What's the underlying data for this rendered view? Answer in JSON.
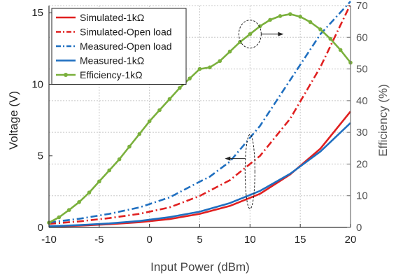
{
  "chart_data": {
    "type": "line",
    "xlabel": "Input Power (dBm)",
    "ylabel_left": "Voltage (V)",
    "ylabel_right": "Efficiency (%)",
    "xlim": [
      -10,
      20
    ],
    "ylim_left": [
      0,
      15.5
    ],
    "ylim_right": [
      0,
      70
    ],
    "x_ticks": [
      "-10",
      "-5",
      "0",
      "5",
      "10",
      "15",
      "20"
    ],
    "y_left_ticks": [
      "0",
      "5",
      "10",
      "15"
    ],
    "y_right_ticks": [
      "0",
      "10",
      "20",
      "30",
      "40",
      "50",
      "60",
      "70"
    ],
    "x_tick_values": [
      -10,
      -5,
      0,
      5,
      10,
      15,
      20
    ],
    "y_left_tick_values": [
      0,
      5,
      10,
      15
    ],
    "y_right_tick_values": [
      0,
      10,
      20,
      30,
      40,
      50,
      60,
      70
    ],
    "grid": true,
    "legend_position": "top-left",
    "colors": {
      "left_axis": "#333333",
      "right_axis": "#707070",
      "grid": "#c8c8c8"
    },
    "series": [
      {
        "name": "Simulated-1kΩ",
        "axis": "left",
        "color": "#e02020",
        "dash": "solid",
        "x": [
          -10,
          -7,
          -4,
          -1,
          2,
          5,
          8,
          11,
          14,
          17,
          20
        ],
        "y": [
          0.05,
          0.12,
          0.22,
          0.36,
          0.58,
          0.95,
          1.5,
          2.35,
          3.7,
          5.5,
          8.1
        ]
      },
      {
        "name": "Simulated-Open load",
        "axis": "left",
        "color": "#e02020",
        "dash": "dashdot",
        "x": [
          -10,
          -7,
          -4,
          -1,
          2,
          5,
          8,
          11,
          14,
          17,
          20
        ],
        "y": [
          0.25,
          0.42,
          0.65,
          0.95,
          1.4,
          2.2,
          3.3,
          5.0,
          7.6,
          11.2,
          15.6
        ]
      },
      {
        "name": "Measured-Open load",
        "axis": "left",
        "color": "#1f6fc0",
        "dash": "dashdot",
        "x": [
          -10,
          -7,
          -4,
          -1,
          2,
          5,
          6,
          8,
          11,
          14,
          17,
          20
        ],
        "y": [
          0.35,
          0.6,
          0.95,
          1.4,
          2.1,
          3.2,
          3.55,
          4.6,
          7.1,
          10.3,
          13.5,
          15.9
        ]
      },
      {
        "name": "Measured-1kΩ",
        "axis": "left",
        "color": "#1f6fc0",
        "dash": "solid",
        "x": [
          -10,
          -7,
          -4,
          -1,
          2,
          5,
          8,
          11,
          14,
          17,
          20
        ],
        "y": [
          0.08,
          0.16,
          0.28,
          0.45,
          0.72,
          1.1,
          1.7,
          2.55,
          3.75,
          5.3,
          7.3
        ]
      },
      {
        "name": "Efficiency-1kΩ",
        "axis": "right",
        "color": "#7ab03c",
        "dash": "solid",
        "markers": true,
        "x": [
          -10,
          -9,
          -8,
          -7,
          -6,
          -5,
          -4,
          -3,
          -2,
          -1,
          0,
          1,
          2,
          3,
          4,
          5,
          6,
          7,
          8,
          9,
          10,
          11,
          12,
          13,
          14,
          15,
          16,
          17,
          18,
          19,
          20
        ],
        "y": [
          1.5,
          3.2,
          5.5,
          8,
          11,
          14.5,
          18,
          21.5,
          25.5,
          29.5,
          33.5,
          37,
          40.5,
          44,
          47,
          50,
          50.5,
          52.5,
          55.5,
          58.5,
          61,
          63.5,
          65.5,
          66.7,
          67.3,
          66.5,
          64.8,
          62.5,
          59.5,
          56,
          52
        ]
      }
    ],
    "annotations": [
      {
        "type": "ellipse-arrow",
        "target_axis": "right",
        "arrow": "right",
        "at_x": 10,
        "at_y": 61
      },
      {
        "type": "ellipse-arrow",
        "target_axis": "left",
        "arrow": "left",
        "at_x": 10,
        "at_y_range": [
          1.3,
          6.5
        ]
      }
    ]
  }
}
